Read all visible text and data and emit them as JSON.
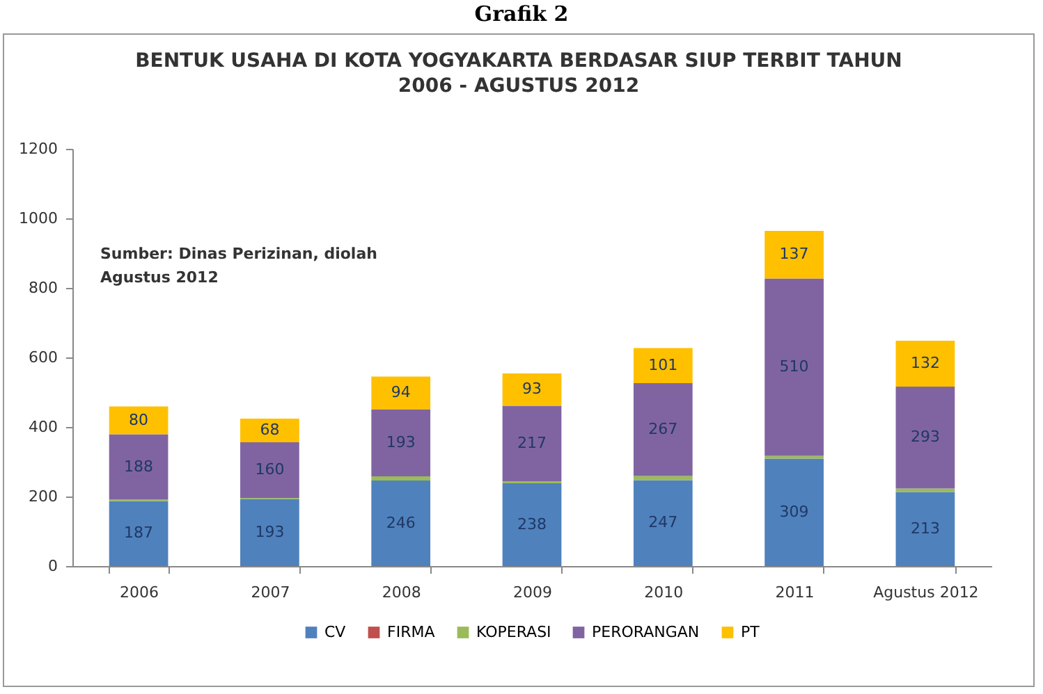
{
  "chart_data": {
    "type": "bar",
    "stacked": true,
    "title": "Grafik 2",
    "subtitle": "BENTUK USAHA DI KOTA YOGYAKARTA BERDASAR SIUP TERBIT TAHUN\n2006 - AGUSTUS 2012",
    "categories": [
      "2006",
      "2007",
      "2008",
      "2009",
      "2010",
      "2011",
      "Agustus 2012"
    ],
    "series": [
      {
        "name": "CV",
        "color": "#4f81bd",
        "values": [
          187,
          193,
          246,
          238,
          247,
          309,
          213
        ],
        "value_labels": [
          "187",
          "193",
          "246",
          "238",
          "247",
          "309",
          "213"
        ]
      },
      {
        "name": "FIRMA",
        "color": "#c0504d",
        "values": [
          null,
          null,
          null,
          null,
          null,
          null,
          null
        ]
      },
      {
        "name": "KOPERASI",
        "color": "#9bbb59",
        "values": [
          4,
          3,
          12,
          6,
          12,
          8,
          10
        ]
      },
      {
        "name": "PERORANGAN",
        "color": "#8064a2",
        "values": [
          188,
          160,
          193,
          217,
          267,
          510,
          293
        ],
        "value_labels": [
          "188",
          "160",
          "193",
          "217",
          "267",
          "510",
          "293"
        ]
      },
      {
        "name": "PT",
        "color": "#ffc000",
        "values": [
          80,
          68,
          94,
          93,
          101,
          137,
          132
        ],
        "value_labels": [
          "80",
          "68",
          "94",
          "93",
          "101",
          "137",
          "132"
        ]
      }
    ],
    "ylim": [
      0,
      1200
    ],
    "yticks": [
      0,
      200,
      400,
      600,
      800,
      1000,
      1200
    ],
    "grid": false,
    "legend": "bottom",
    "annotations": [
      "Sumber: Dinas Perizinan, diolah\nAgustus 2012"
    ]
  }
}
